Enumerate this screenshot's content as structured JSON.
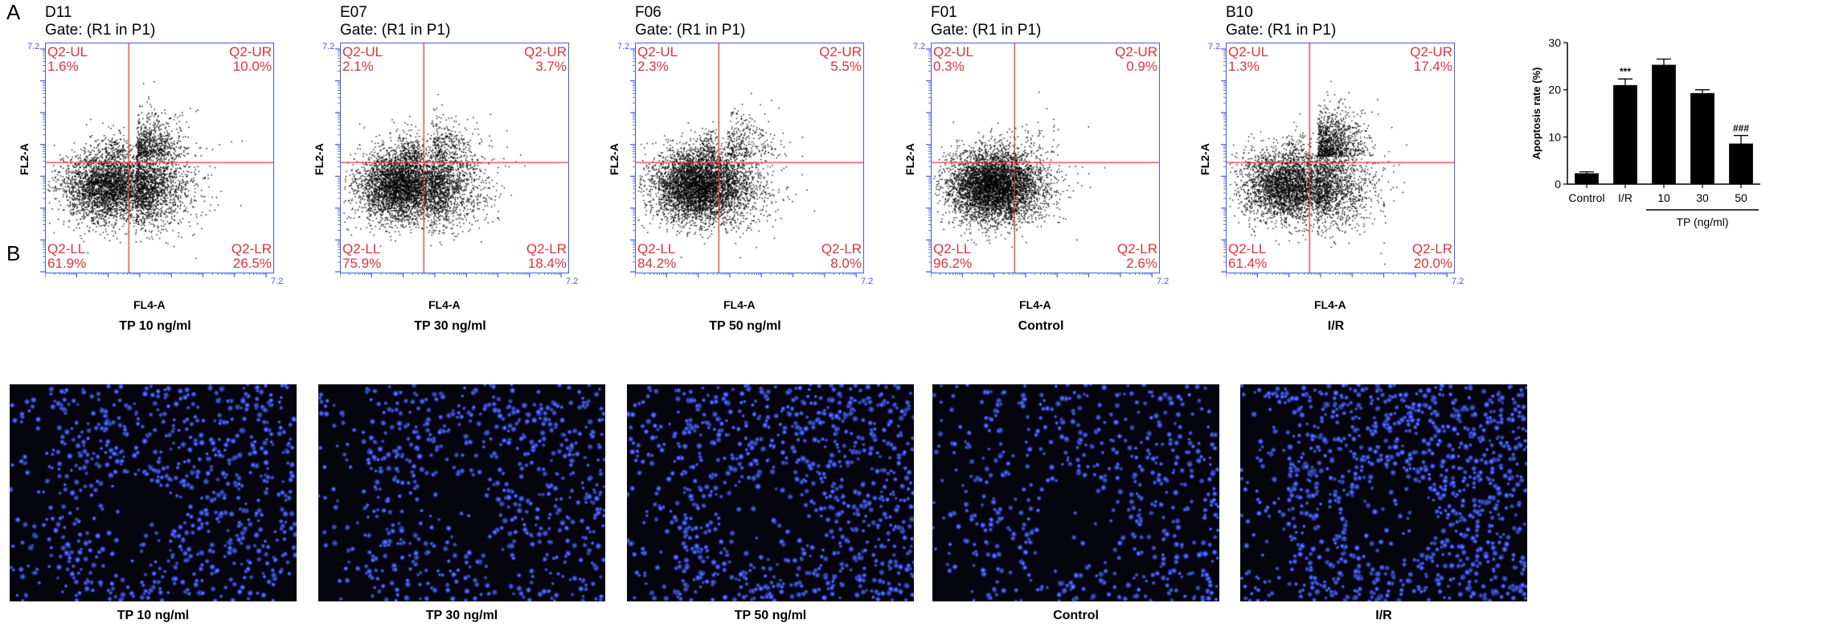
{
  "panel_a_label": "A",
  "panel_b_label": "B",
  "flow_panels": [
    {
      "sample": "D11",
      "gate": "Gate: (R1 in P1)",
      "caption": "TP 10 ng/ml",
      "ul": "Q2-UL",
      "ul_v": "1.6%",
      "ur": "Q2-UR",
      "ur_v": "10.0%",
      "ll": "Q2-LL",
      "ll_v": "61.9%",
      "lr": "Q2-LR",
      "lr_v": "26.5%",
      "xlabel": "FL4-A",
      "ylabel": "FL2-A",
      "xmax": "7.2",
      "ymax": "7.2"
    },
    {
      "sample": "E07",
      "gate": "Gate: (R1 in P1)",
      "caption": "TP 30 ng/ml",
      "ul": "Q2-UL",
      "ul_v": "2.1%",
      "ur": "Q2-UR",
      "ur_v": "3.7%",
      "ll": "Q2-LL",
      "ll_v": "75.9%",
      "lr": "Q2-LR",
      "lr_v": "18.4%",
      "xlabel": "FL4-A",
      "ylabel": "FL2-A",
      "xmax": "7.2",
      "ymax": "7.2"
    },
    {
      "sample": "F06",
      "gate": "Gate: (R1 in P1)",
      "caption": "TP 50 ng/ml",
      "ul": "Q2-UL",
      "ul_v": "2.3%",
      "ur": "Q2-UR",
      "ur_v": "5.5%",
      "ll": "Q2-LL",
      "ll_v": "84.2%",
      "lr": "Q2-LR",
      "lr_v": "8.0%",
      "xlabel": "FL4-A",
      "ylabel": "FL2-A",
      "xmax": "7.2",
      "ymax": "7.2"
    },
    {
      "sample": "F01",
      "gate": "Gate: (R1 in P1)",
      "caption": "Control",
      "ul": "Q2-UL",
      "ul_v": "0.3%",
      "ur": "Q2-UR",
      "ur_v": "0.9%",
      "ll": "Q2-LL",
      "ll_v": "96.2%",
      "lr": "Q2-LR",
      "lr_v": "2.6%",
      "xlabel": "FL4-A",
      "ylabel": "FL2-A",
      "xmax": "7.2",
      "ymax": "7.2"
    },
    {
      "sample": "B10",
      "gate": "Gate: (R1 in P1)",
      "caption": "I/R",
      "ul": "Q2-UL",
      "ul_v": "1.3%",
      "ur": "Q2-UR",
      "ur_v": "17.4%",
      "ll": "Q2-LL",
      "ll_v": "61.4%",
      "lr": "Q2-LR",
      "lr_v": "20.0%",
      "xlabel": "FL4-A",
      "ylabel": "FL2-A",
      "xmax": "7.2",
      "ymax": "7.2"
    }
  ],
  "micro_panels": [
    {
      "caption": "TP 10 ng/ml"
    },
    {
      "caption": "TP 30 ng/ml"
    },
    {
      "caption": "TP 50 ng/ml"
    },
    {
      "caption": "Control"
    },
    {
      "caption": "I/R"
    }
  ],
  "colors": {
    "quadrant": "#e0323a",
    "axis": "#4a5bd6",
    "nuclei": "#2d46ff",
    "bar": "#000000"
  },
  "chart_data": {
    "type": "bar",
    "ylabel": "Apoptosis rate (%)",
    "ylim": [
      0,
      30
    ],
    "yticks": [
      0,
      10,
      20,
      30
    ],
    "categories": [
      "Control",
      "I/R",
      "10",
      "30",
      "50"
    ],
    "values": [
      2.3,
      21.0,
      25.3,
      19.3,
      8.6
    ],
    "errors": [
      0.3,
      1.3,
      1.2,
      0.7,
      1.7
    ],
    "annotations": [
      "",
      "***",
      "",
      "",
      "###"
    ],
    "group_label": "TP (ng/ml)"
  }
}
